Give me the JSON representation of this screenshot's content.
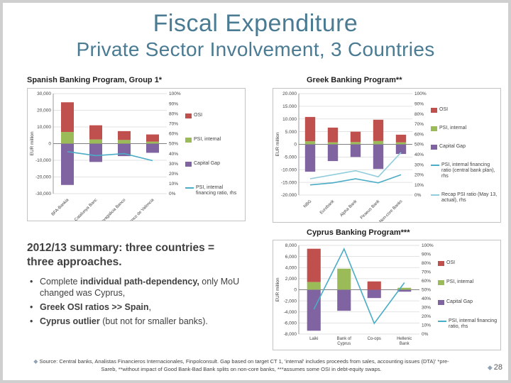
{
  "slide": {
    "title": "Fiscal Expenditure",
    "subtitle": "Private Sector Involvement, 3 Countries",
    "page_number": "28",
    "footer": "Source: Central banks, Analistas Financieros Internacionales, Finpolconsult. Gap based on target CT 1, 'internal' includes proceeds from sales, accounting issues (DTA)' *pre-Sareb, **without impact of Good Bank-Bad Bank splits on non-core banks, ***assumes some OSI in debt-equity swaps.",
    "accent_color": "#4a7b93"
  },
  "summary": {
    "heading": "2012/13 summary: three countries = three approaches.",
    "bullets": [
      {
        "pre": "Complete ",
        "bold": "individual path-dependency,",
        "post": " only MoU changed was Cyprus,"
      },
      {
        "pre": "",
        "bold": "Greek OSI ratios >> Spain",
        "post": ","
      },
      {
        "pre": "",
        "bold": "Cyprus outlier",
        "post": " (but not for smaller banks)."
      }
    ]
  },
  "chart_data": [
    {
      "type": "bar",
      "title": "Spanish Banking Program, Group 1*",
      "ylabel": "EUR million",
      "ylim": [
        -30000,
        30000
      ],
      "yticks": [
        {
          "v": 30000,
          "l": "30,000"
        },
        {
          "v": 20000,
          "l": "20,000"
        },
        {
          "v": 10000,
          "l": "10,000"
        },
        {
          "v": 0,
          "l": "0"
        },
        {
          "v": -10000,
          "l": "-10,000"
        },
        {
          "v": -20000,
          "l": "-20,000"
        },
        {
          "v": -30000,
          "l": "-30,000"
        }
      ],
      "y2ticks": [
        "100%",
        "90%",
        "80%",
        "70%",
        "60%",
        "50%",
        "40%",
        "30%",
        "20%",
        "10%",
        "0%"
      ],
      "categories": [
        "BFA-Bankia",
        "Catalunya Banc",
        "Novagalicia Banco",
        "Banco de Valencia"
      ],
      "cat_rotate": true,
      "bar_series": [
        {
          "name": "PSI, internal",
          "color": "#9BBB59",
          "values": [
            7000,
            2500,
            2200,
            1200
          ]
        },
        {
          "name": "OSI",
          "color": "#C0504D",
          "values": [
            17800,
            8500,
            5300,
            4300
          ]
        },
        {
          "name": "Capital Gap",
          "color": "#8064A2",
          "values": [
            -24800,
            -11000,
            -7500,
            -5500
          ]
        }
      ],
      "line_series": [
        {
          "name": "PSI, internal financing ratio, rhs",
          "color": "#4BACC6",
          "values": [
            42,
            38,
            40,
            33
          ]
        }
      ],
      "legend": [
        {
          "label": "OSI",
          "color": "#C0504D",
          "type": "box"
        },
        {
          "label": "PSI, internal",
          "color": "#9BBB59",
          "type": "box"
        },
        {
          "label": "Capital Gap",
          "color": "#8064A2",
          "type": "box"
        },
        {
          "label": "PSI, internal financing ratio, rhs",
          "color": "#4BACC6",
          "type": "line"
        }
      ]
    },
    {
      "type": "bar",
      "title": "Greek Banking Program**",
      "ylabel": "EUR million",
      "ylim": [
        -20000,
        20000
      ],
      "yticks": [
        {
          "v": 20000,
          "l": "20.000"
        },
        {
          "v": 15000,
          "l": "15.000"
        },
        {
          "v": 10000,
          "l": "10.000"
        },
        {
          "v": 5000,
          "l": "5.000"
        },
        {
          "v": 0,
          "l": "0"
        },
        {
          "v": -5000,
          "l": "-5.000"
        },
        {
          "v": -10000,
          "l": "-10.000"
        },
        {
          "v": -15000,
          "l": "-15.000"
        },
        {
          "v": -20000,
          "l": "-20.000"
        }
      ],
      "y2ticks": [
        "100%",
        "90%",
        "80%",
        "70%",
        "60%",
        "50%",
        "40%",
        "30%",
        "20%",
        "10%",
        "0%"
      ],
      "categories": [
        "NBG",
        "Eurobank",
        "Alpha Bank",
        "Piraeus Bank",
        "Non-core Banks"
      ],
      "cat_rotate": true,
      "bar_series": [
        {
          "name": "PSI, internal",
          "color": "#9BBB59",
          "values": [
            1200,
            800,
            900,
            1300,
            800
          ]
        },
        {
          "name": "OSI",
          "color": "#C0504D",
          "values": [
            9600,
            5800,
            4100,
            8400,
            3000
          ]
        },
        {
          "name": "Capital Gap",
          "color": "#8064A2",
          "values": [
            -10800,
            -6600,
            -5000,
            -9700,
            -3800
          ]
        }
      ],
      "line_series": [
        {
          "name": "PSI, internal financing ratio (central bank plan), rhs",
          "color": "#4BACC6",
          "values": [
            10,
            12,
            16,
            12,
            20
          ]
        },
        {
          "name": "Recap PSI ratio (May 13, actual), rhs",
          "color": "#92CDDC",
          "values": [
            16,
            20,
            24,
            18,
            42
          ]
        }
      ],
      "legend": [
        {
          "label": "OSI",
          "color": "#C0504D",
          "type": "box"
        },
        {
          "label": "PSI, internal",
          "color": "#9BBB59",
          "type": "box"
        },
        {
          "label": "Capital Gap",
          "color": "#8064A2",
          "type": "box"
        },
        {
          "label": "PSI, internal financing ratio (central bank plan), rhs",
          "color": "#4BACC6",
          "type": "line"
        },
        {
          "label": "Recap PSI ratio (May 13, actual), rhs",
          "color": "#92CDDC",
          "type": "line"
        }
      ]
    },
    {
      "type": "bar",
      "title": "Cyprus Banking Program***",
      "ylabel": "EUR million",
      "ylim": [
        -8000,
        8000
      ],
      "yticks": [
        {
          "v": 8000,
          "l": "8,000"
        },
        {
          "v": 6000,
          "l": "6,000"
        },
        {
          "v": 4000,
          "l": "4,000"
        },
        {
          "v": 2000,
          "l": "2,000"
        },
        {
          "v": 0,
          "l": "0"
        },
        {
          "v": -2000,
          "l": "-2,000"
        },
        {
          "v": -4000,
          "l": "-4,000"
        },
        {
          "v": -6000,
          "l": "-6,000"
        },
        {
          "v": -8000,
          "l": "-8,000"
        }
      ],
      "y2ticks": [
        "100%",
        "90%",
        "80%",
        "70%",
        "60%",
        "50%",
        "40%",
        "30%",
        "20%",
        "10%",
        "0%"
      ],
      "categories": [
        "Laiki",
        "Bank of Cyprus",
        "Co-ops",
        "Hellenic Bank"
      ],
      "cat_rotate": false,
      "bar_series": [
        {
          "name": "PSI, internal",
          "color": "#9BBB59",
          "values": [
            1400,
            3800,
            0,
            350
          ]
        },
        {
          "name": "OSI",
          "color": "#C0504D",
          "values": [
            6000,
            0,
            1500,
            0
          ]
        },
        {
          "name": "Capital Gap",
          "color": "#8064A2",
          "values": [
            -7400,
            -3800,
            -1500,
            -350
          ]
        }
      ],
      "line_series": [
        {
          "name": "PSI, internal financing ratio, rhs",
          "color": "#4BACC6",
          "values": [
            28,
            96,
            12,
            58
          ]
        }
      ],
      "legend": [
        {
          "label": "OSI",
          "color": "#C0504D",
          "type": "box"
        },
        {
          "label": "PSI, internal",
          "color": "#9BBB59",
          "type": "box"
        },
        {
          "label": "Capital Gap",
          "color": "#8064A2",
          "type": "box"
        },
        {
          "label": "PSI, internal financing ratio, rhs",
          "color": "#4BACC6",
          "type": "line"
        }
      ]
    }
  ]
}
